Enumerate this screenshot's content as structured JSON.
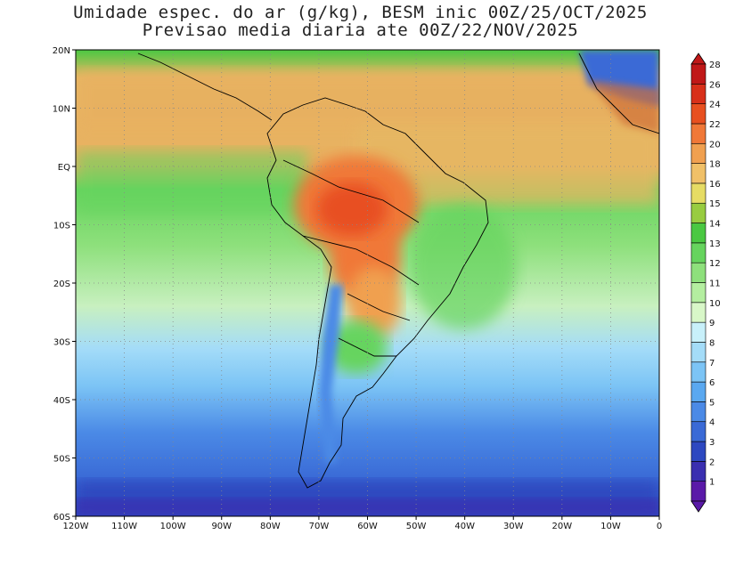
{
  "title": {
    "line1": "Umidade espec. do ar (g/kg), BESM inic 00Z/25/OCT/2025",
    "line2": "Previsao media diaria ate 00Z/22/NOV/2025"
  },
  "map": {
    "lon_range": [
      -120,
      0
    ],
    "lat_range": [
      -60,
      20
    ],
    "lat_labels": [
      "20N",
      "10N",
      "EQ",
      "10S",
      "20S",
      "30S",
      "40S",
      "50S",
      "60S"
    ],
    "lon_labels": [
      "120W",
      "110W",
      "100W",
      "90W",
      "80W",
      "70W",
      "60W",
      "50W",
      "40W",
      "30W",
      "20W",
      "10W",
      "0"
    ],
    "gridlines": "dotted"
  },
  "colorbar": {
    "labels": [
      "1",
      "2",
      "3",
      "4",
      "5",
      "6",
      "7",
      "8",
      "9",
      "10",
      "11",
      "12",
      "13",
      "14",
      "15",
      "16",
      "18",
      "20",
      "22",
      "24",
      "26",
      "28"
    ],
    "colors": [
      "#5a1aa8",
      "#3a2fb0",
      "#2d48c0",
      "#3a6ad6",
      "#4b8ae6",
      "#5aa8f0",
      "#7cc4f5",
      "#a4dcf8",
      "#c8f0fa",
      "#d8f7c8",
      "#b4eea0",
      "#8ee07c",
      "#66d45e",
      "#4ac842",
      "#98cc40",
      "#e6dc64",
      "#f0c068",
      "#f0a050",
      "#f07838",
      "#e85020",
      "#d8301a",
      "#c01818"
    ]
  }
}
